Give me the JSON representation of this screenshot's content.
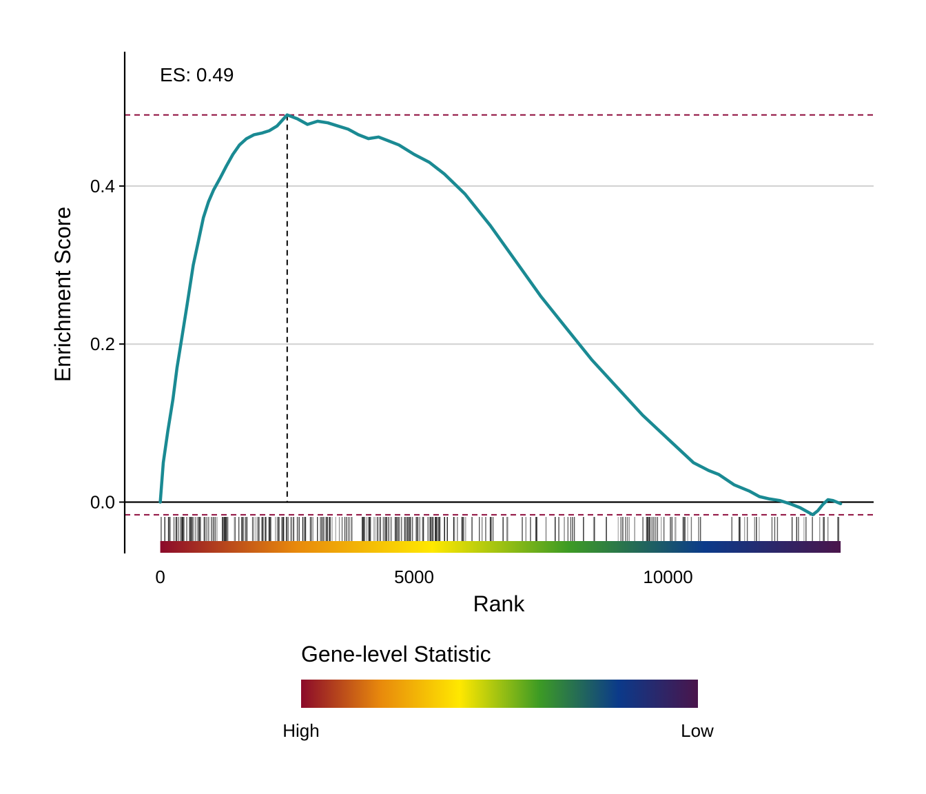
{
  "chart_data": {
    "type": "line",
    "annotation": "ES: 0.49",
    "xlabel": "Rank",
    "ylabel": "Enrichment Score",
    "xlim": [
      -700,
      14050
    ],
    "ylim": [
      -0.065,
      0.57
    ],
    "x_ticks": [
      0,
      5000,
      10000
    ],
    "x_tick_labels": [
      "0",
      "5000",
      "10000"
    ],
    "y_ticks": [
      0.0,
      0.2,
      0.4
    ],
    "y_tick_labels": [
      "0.0",
      "0.2",
      "0.4"
    ],
    "grid": "horizontal major lines only",
    "enrichment_score": 0.49,
    "peak_rank": 2500,
    "max_es_line": 0.49,
    "min_es_line": -0.016,
    "series": [
      {
        "color": "#1a8a93",
        "x": [
          0,
          60,
          150,
          250,
          330,
          430,
          530,
          650,
          750,
          850,
          950,
          1050,
          1180,
          1300,
          1430,
          1560,
          1700,
          1850,
          2000,
          2150,
          2300,
          2400,
          2500,
          2700,
          2900,
          3100,
          3300,
          3500,
          3700,
          3900,
          4100,
          4300,
          4500,
          4700,
          5000,
          5300,
          5600,
          6000,
          6500,
          7000,
          7500,
          8000,
          8500,
          9000,
          9500,
          10000,
          10500,
          10800,
          11000,
          11300,
          11600,
          11800,
          12000,
          12200,
          12400,
          12600,
          12850,
          12950,
          13050,
          13150,
          13250,
          13400
        ],
        "y": [
          0.0,
          0.05,
          0.09,
          0.13,
          0.17,
          0.21,
          0.25,
          0.3,
          0.33,
          0.36,
          0.38,
          0.395,
          0.41,
          0.425,
          0.44,
          0.452,
          0.46,
          0.465,
          0.467,
          0.47,
          0.476,
          0.483,
          0.49,
          0.485,
          0.478,
          0.482,
          0.48,
          0.476,
          0.472,
          0.465,
          0.46,
          0.462,
          0.457,
          0.452,
          0.44,
          0.43,
          0.415,
          0.39,
          0.35,
          0.305,
          0.26,
          0.22,
          0.18,
          0.145,
          0.11,
          0.08,
          0.05,
          0.04,
          0.035,
          0.022,
          0.014,
          0.007,
          0.004,
          0.002,
          -0.002,
          -0.007,
          -0.016,
          -0.011,
          -0.003,
          0.003,
          0.002,
          -0.002
        ]
      }
    ],
    "rug": {
      "description": "gene set member positions along the rank axis",
      "dense_ranges": [
        [
          0,
          5600,
          0.85
        ],
        [
          5600,
          10700,
          0.35
        ],
        [
          10700,
          11400,
          0.05
        ],
        [
          11400,
          12700,
          0.25
        ],
        [
          12700,
          13400,
          0.6
        ]
      ],
      "color": "#000000"
    },
    "rank_color_bar": {
      "x_range": [
        0,
        13400
      ],
      "stops": [
        "#8b0a2a",
        "#e8890c",
        "#ffe800",
        "#3d9b24",
        "#0b3a8a",
        "#4a154b"
      ]
    },
    "legend": {
      "title": "Gene-level Statistic",
      "low_end_label": "High",
      "high_end_label": "Low",
      "placement": "bottom"
    },
    "colors": {
      "es_line": "#1a8a93",
      "dashed_max_min": "#8e0b3c",
      "peak_line": "#000000",
      "grid": "#d0d0d0"
    }
  }
}
